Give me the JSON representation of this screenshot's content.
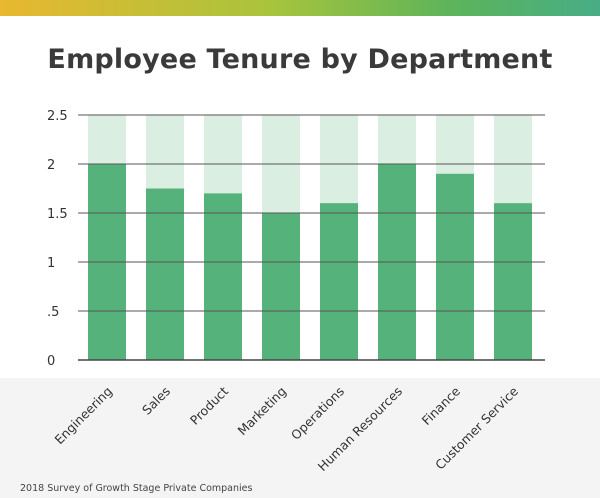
{
  "title": "Employee Tenure by Department",
  "source": "2018 Survey of Growth Stage Private Companies",
  "colors": {
    "bar": "#55b27a",
    "bar_background": "#daeee1",
    "axis": "#444444",
    "grid": "#555555"
  },
  "chart_data": {
    "type": "bar",
    "title": "Employee Tenure by Department",
    "xlabel": "",
    "ylabel": "",
    "categories": [
      "Engineering",
      "Sales",
      "Product",
      "Marketing",
      "Operations",
      "Human Resources",
      "Finance",
      "Customer Service"
    ],
    "values": [
      2.0,
      1.75,
      1.7,
      1.5,
      1.6,
      2.0,
      1.9,
      1.6
    ],
    "ylim": [
      0,
      2.5
    ],
    "yticks": [
      0,
      0.5,
      1,
      1.5,
      2,
      2.5
    ],
    "ytick_labels": [
      "0",
      ".5",
      "1",
      "1.5",
      "2",
      "2.5"
    ],
    "grid": true,
    "background_bars_to": 2.5
  }
}
